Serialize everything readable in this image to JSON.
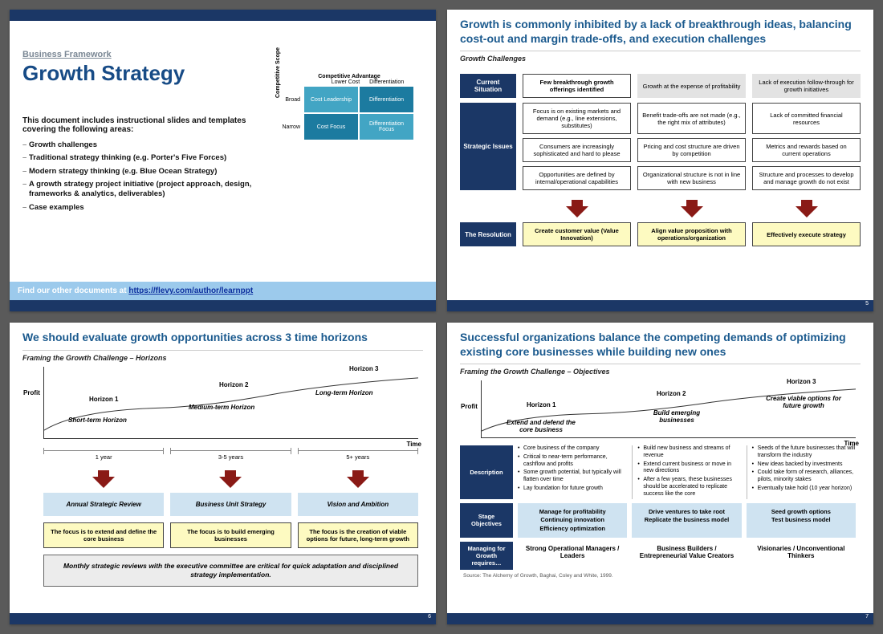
{
  "colors": {
    "navy": "#1b3766",
    "titleBlue": "#1b5a8e",
    "cellTeal": "#42a5c4",
    "cellTealDark": "#1c7ba0",
    "arrowRed": "#8a1a16",
    "lightBlue": "#cfe3f1",
    "lightYel": "#fdfac1",
    "banner": "#9ccaec"
  },
  "slide1": {
    "pretitle": "Business Framework",
    "title": "Growth Strategy",
    "intro": "This document includes instructional slides and templates covering the following areas:",
    "bullets": [
      "Growth challenges",
      "Traditional strategy thinking (e.g. Porter's Five Forces)",
      "Modern strategy thinking (e.g. Blue Ocean Strategy)",
      "A growth strategy project initiative (project approach, design, frameworks & analytics, deliverables)",
      "Case examples"
    ],
    "linkbar_prefix": "Find our other documents at ",
    "linkbar_url": "https://flevy.com/author/learnppt",
    "matrix": {
      "caption": "Competitive Advantage",
      "col1": "Lower Cost",
      "col2": "Differentiation",
      "row1": "Broad",
      "row2": "Narrow",
      "ylabel": "Competitive Scope",
      "cells": [
        "Cost Leadership",
        "Differentiation",
        "Cost Focus",
        "Differentiation Focus"
      ]
    }
  },
  "slide2": {
    "title": "Growth is commonly inhibited by a lack of breakthrough ideas, balancing cost-out and margin trade-offs, and execution challenges",
    "subtitle": "Growth Challenges",
    "page": "5",
    "rows": {
      "current": {
        "label": "Current Situation",
        "c1": "Few breakthrough growth offerings identified",
        "c2": "Growth at the expense of profitability",
        "c3": "Lack of execution follow-through for growth initiatives"
      },
      "issues": {
        "label": "Strategic Issues",
        "r1": [
          "Focus is on existing markets and demand (e.g., line extensions, substitutes)",
          "Benefit trade-offs are not made (e.g., the right mix of attributes)",
          "Lack of committed financial resources"
        ],
        "r2": [
          "Consumers are increasingly sophisticated and hard to please",
          "Pricing and cost structure are driven by competition",
          "Metrics and rewards based on current operations"
        ],
        "r3": [
          "Opportunities are defined by internal/operational capabilities",
          "Organizational structure is not in line with new business",
          "Structure and processes to develop and manage growth do not exist"
        ]
      },
      "res": {
        "label": "The Resolution",
        "c": [
          "Create customer value (Value Innovation)",
          "Align value proposition with operations/organization",
          "Effectively execute strategy"
        ]
      }
    }
  },
  "slide3": {
    "title": "We should evaluate growth opportunities across 3 time horizons",
    "subtitle": "Framing the Growth Challenge – Horizons",
    "page": "6",
    "chart": {
      "ylabel": "Profit",
      "xlabel": "Time",
      "h1": "Horizon 1",
      "h2": "Horizon 2",
      "h3": "Horizon 3",
      "s1": "Short-term Horizon",
      "s2": "Medium-term Horizon",
      "s3": "Long-term Horizon"
    },
    "ranges": [
      "1 year",
      "3-5 years",
      "5+ years"
    ],
    "blue": [
      "Annual Strategic Review",
      "Business Unit Strategy",
      "Vision and Ambition"
    ],
    "yel": [
      "The focus is to extend and define the core business",
      "The focus is to build emerging businesses",
      "The focus is the creation of viable options for future, long-term growth"
    ],
    "note": "Monthly strategic reviews with the executive committee are critical for quick adaptation and disciplined strategy implementation."
  },
  "slide4": {
    "title": "Successful organizations balance the competing demands of optimizing existing core businesses while building new ones",
    "subtitle": "Framing the Growth Challenge – Objectives",
    "page": "7",
    "chart": {
      "ylabel": "Profit",
      "xlabel": "Time",
      "h1": "Horizon 1",
      "h2": "Horizon 2",
      "h3": "Horizon 3",
      "s1": "Extend and defend the core business",
      "s2": "Build emerging businesses",
      "s3": "Create viable options for future growth"
    },
    "labels": {
      "desc": "Description",
      "obj": "Stage Objectives",
      "mgr": "Managing for Growth requires…"
    },
    "desc": [
      [
        "Core business of the company",
        "Critical to near-term performance, cashflow and profits",
        "Some growth potential, but typically will flatten over time",
        "Lay foundation for future growth"
      ],
      [
        "Build new business and streams of revenue",
        "Extend current business or move in new directions",
        "After a few years, these businesses should be accelerated to replicate success like the core"
      ],
      [
        "Seeds of the future businesses that will transform the industry",
        "New ideas backed by investments",
        "Could take form of research, alliances, pilots, minority stakes",
        "Eventually take hold (10 year horizon)"
      ]
    ],
    "obj": [
      [
        "Manage for profitability",
        "Continuing innovation",
        "Efficiency optimization"
      ],
      [
        "Drive ventures to take root",
        "Replicate the business model"
      ],
      [
        "Seed growth options",
        "Test business model"
      ]
    ],
    "mgr": [
      "Strong Operational Managers / Leaders",
      "Business Builders / Entrepreneurial Value Creators",
      "Visionaries / Unconventional Thinkers"
    ],
    "source": "Source: The Alchemy of Growth, Baghai, Coley and White, 1999."
  }
}
